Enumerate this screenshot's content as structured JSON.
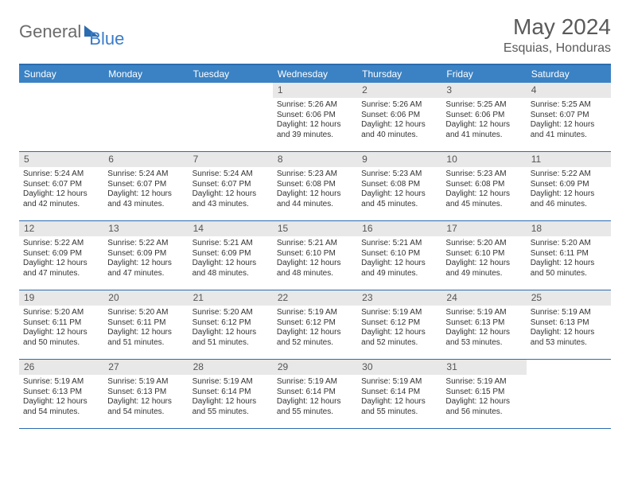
{
  "logo": {
    "part1": "General",
    "part2": "Blue"
  },
  "title": "May 2024",
  "location": "Esquias, Honduras",
  "weekdays": [
    "Sunday",
    "Monday",
    "Tuesday",
    "Wednesday",
    "Thursday",
    "Friday",
    "Saturday"
  ],
  "colors": {
    "header_bar": "#3b82c4",
    "border": "#2b6cb0",
    "daynum_bg": "#e8e8e8",
    "text": "#333333",
    "title_text": "#5a5a5a"
  },
  "layout": {
    "first_weekday_index": 3,
    "days_in_month": 31
  },
  "days": [
    {
      "n": 1,
      "sunrise": "5:26 AM",
      "sunset": "6:06 PM",
      "daylight": "12 hours and 39 minutes."
    },
    {
      "n": 2,
      "sunrise": "5:26 AM",
      "sunset": "6:06 PM",
      "daylight": "12 hours and 40 minutes."
    },
    {
      "n": 3,
      "sunrise": "5:25 AM",
      "sunset": "6:06 PM",
      "daylight": "12 hours and 41 minutes."
    },
    {
      "n": 4,
      "sunrise": "5:25 AM",
      "sunset": "6:07 PM",
      "daylight": "12 hours and 41 minutes."
    },
    {
      "n": 5,
      "sunrise": "5:24 AM",
      "sunset": "6:07 PM",
      "daylight": "12 hours and 42 minutes."
    },
    {
      "n": 6,
      "sunrise": "5:24 AM",
      "sunset": "6:07 PM",
      "daylight": "12 hours and 43 minutes."
    },
    {
      "n": 7,
      "sunrise": "5:24 AM",
      "sunset": "6:07 PM",
      "daylight": "12 hours and 43 minutes."
    },
    {
      "n": 8,
      "sunrise": "5:23 AM",
      "sunset": "6:08 PM",
      "daylight": "12 hours and 44 minutes."
    },
    {
      "n": 9,
      "sunrise": "5:23 AM",
      "sunset": "6:08 PM",
      "daylight": "12 hours and 45 minutes."
    },
    {
      "n": 10,
      "sunrise": "5:23 AM",
      "sunset": "6:08 PM",
      "daylight": "12 hours and 45 minutes."
    },
    {
      "n": 11,
      "sunrise": "5:22 AM",
      "sunset": "6:09 PM",
      "daylight": "12 hours and 46 minutes."
    },
    {
      "n": 12,
      "sunrise": "5:22 AM",
      "sunset": "6:09 PM",
      "daylight": "12 hours and 47 minutes."
    },
    {
      "n": 13,
      "sunrise": "5:22 AM",
      "sunset": "6:09 PM",
      "daylight": "12 hours and 47 minutes."
    },
    {
      "n": 14,
      "sunrise": "5:21 AM",
      "sunset": "6:09 PM",
      "daylight": "12 hours and 48 minutes."
    },
    {
      "n": 15,
      "sunrise": "5:21 AM",
      "sunset": "6:10 PM",
      "daylight": "12 hours and 48 minutes."
    },
    {
      "n": 16,
      "sunrise": "5:21 AM",
      "sunset": "6:10 PM",
      "daylight": "12 hours and 49 minutes."
    },
    {
      "n": 17,
      "sunrise": "5:20 AM",
      "sunset": "6:10 PM",
      "daylight": "12 hours and 49 minutes."
    },
    {
      "n": 18,
      "sunrise": "5:20 AM",
      "sunset": "6:11 PM",
      "daylight": "12 hours and 50 minutes."
    },
    {
      "n": 19,
      "sunrise": "5:20 AM",
      "sunset": "6:11 PM",
      "daylight": "12 hours and 50 minutes."
    },
    {
      "n": 20,
      "sunrise": "5:20 AM",
      "sunset": "6:11 PM",
      "daylight": "12 hours and 51 minutes."
    },
    {
      "n": 21,
      "sunrise": "5:20 AM",
      "sunset": "6:12 PM",
      "daylight": "12 hours and 51 minutes."
    },
    {
      "n": 22,
      "sunrise": "5:19 AM",
      "sunset": "6:12 PM",
      "daylight": "12 hours and 52 minutes."
    },
    {
      "n": 23,
      "sunrise": "5:19 AM",
      "sunset": "6:12 PM",
      "daylight": "12 hours and 52 minutes."
    },
    {
      "n": 24,
      "sunrise": "5:19 AM",
      "sunset": "6:13 PM",
      "daylight": "12 hours and 53 minutes."
    },
    {
      "n": 25,
      "sunrise": "5:19 AM",
      "sunset": "6:13 PM",
      "daylight": "12 hours and 53 minutes."
    },
    {
      "n": 26,
      "sunrise": "5:19 AM",
      "sunset": "6:13 PM",
      "daylight": "12 hours and 54 minutes."
    },
    {
      "n": 27,
      "sunrise": "5:19 AM",
      "sunset": "6:13 PM",
      "daylight": "12 hours and 54 minutes."
    },
    {
      "n": 28,
      "sunrise": "5:19 AM",
      "sunset": "6:14 PM",
      "daylight": "12 hours and 55 minutes."
    },
    {
      "n": 29,
      "sunrise": "5:19 AM",
      "sunset": "6:14 PM",
      "daylight": "12 hours and 55 minutes."
    },
    {
      "n": 30,
      "sunrise": "5:19 AM",
      "sunset": "6:14 PM",
      "daylight": "12 hours and 55 minutes."
    },
    {
      "n": 31,
      "sunrise": "5:19 AM",
      "sunset": "6:15 PM",
      "daylight": "12 hours and 56 minutes."
    }
  ],
  "labels": {
    "sunrise": "Sunrise:",
    "sunset": "Sunset:",
    "daylight": "Daylight:"
  }
}
